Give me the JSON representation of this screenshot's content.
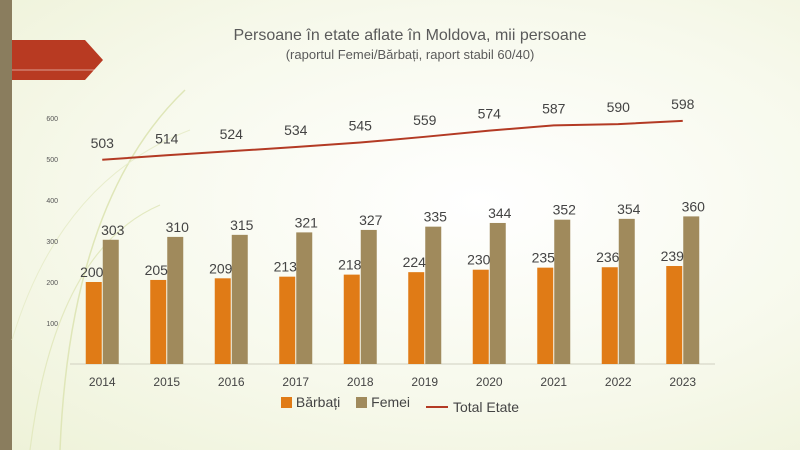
{
  "title": "Persoane în etate aflate în Moldova, mii persoane",
  "subtitle": "(raportul Femei/Bărbați, raport stabil 60/40)",
  "colors": {
    "barbati": "#e07b16",
    "femei": "#a08a5c",
    "total": "#b33a24",
    "arrow": "#b83a22",
    "axis_text": "#555555",
    "left_bar": "#8a7d5e"
  },
  "chart_data": {
    "type": "bar",
    "categories": [
      "2014",
      "2015",
      "2016",
      "2017",
      "2018",
      "2019",
      "2020",
      "2021",
      "2022",
      "2023"
    ],
    "series": [
      {
        "name": "Bărbați",
        "type": "bar",
        "values": [
          200,
          205,
          209,
          213,
          218,
          224,
          230,
          235,
          236,
          239
        ]
      },
      {
        "name": "Femei",
        "type": "bar",
        "values": [
          303,
          310,
          315,
          321,
          327,
          335,
          344,
          352,
          354,
          360
        ]
      },
      {
        "name": "Total Etate",
        "type": "line",
        "values": [
          503,
          514,
          524,
          534,
          545,
          559,
          574,
          587,
          590,
          598
        ]
      }
    ],
    "yticks": [
      100,
      200,
      300,
      400,
      500,
      600
    ],
    "ylim": [
      0,
      650
    ],
    "grid": false,
    "legend": "bottom"
  }
}
